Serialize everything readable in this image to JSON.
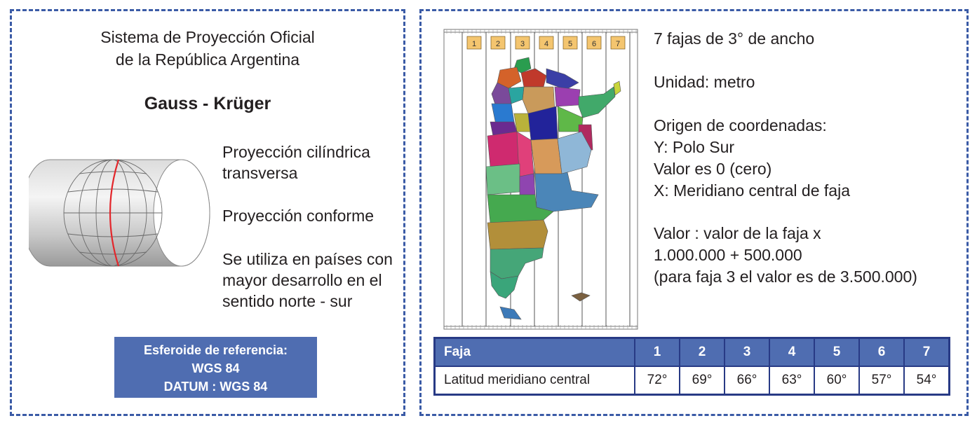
{
  "left": {
    "title_line1": "Sistema de Proyección Oficial",
    "title_line2": "de la República Argentina",
    "heading": "Gauss - Krüger",
    "desc1_line1": "Proyección cilíndrica",
    "desc1_line2": "transversa",
    "desc2": "Proyección conforme",
    "desc3_line1": "Se utiliza en países con",
    "desc3_line2": "mayor desarrollo en el",
    "desc3_line3": "sentido norte - sur",
    "ref_line1": "Esferoide de referencia:",
    "ref_line2": "WGS 84",
    "ref_line3": "DATUM : WGS 84"
  },
  "right": {
    "fajas": "7 fajas de 3° de ancho",
    "unidad": "Unidad: metro",
    "origen": "Origen de coordenadas:",
    "y": "Y: Polo Sur",
    "valor0": "Valor es 0 (cero)",
    "x": "X: Meridiano central de faja",
    "valor_line1": "Valor : valor de la faja x",
    "valor_line2": "1.000.000 + 500.000",
    "valor_line3": "(para faja 3 el valor es de 3.500.000)",
    "zone_labels": [
      "1",
      "2",
      "3",
      "4",
      "5",
      "6",
      "7"
    ]
  },
  "table": {
    "header_label": "Faja",
    "row_label": "Latitud meridiano central",
    "zones": [
      "1",
      "2",
      "3",
      "4",
      "5",
      "6",
      "7"
    ],
    "meridians": [
      "72°",
      "69°",
      "66°",
      "63°",
      "60°",
      "57°",
      "54°"
    ]
  },
  "colors": {
    "frame": "#3b5ba6",
    "box_fill": "#4f6db1",
    "table_border": "#283a85",
    "meridian_red": "#e3262b",
    "zone_label_fill": "#f4c56f"
  },
  "icons": {
    "cylinder": "transverse-cylinder-globe-icon",
    "map": "argentina-provinces-map"
  }
}
